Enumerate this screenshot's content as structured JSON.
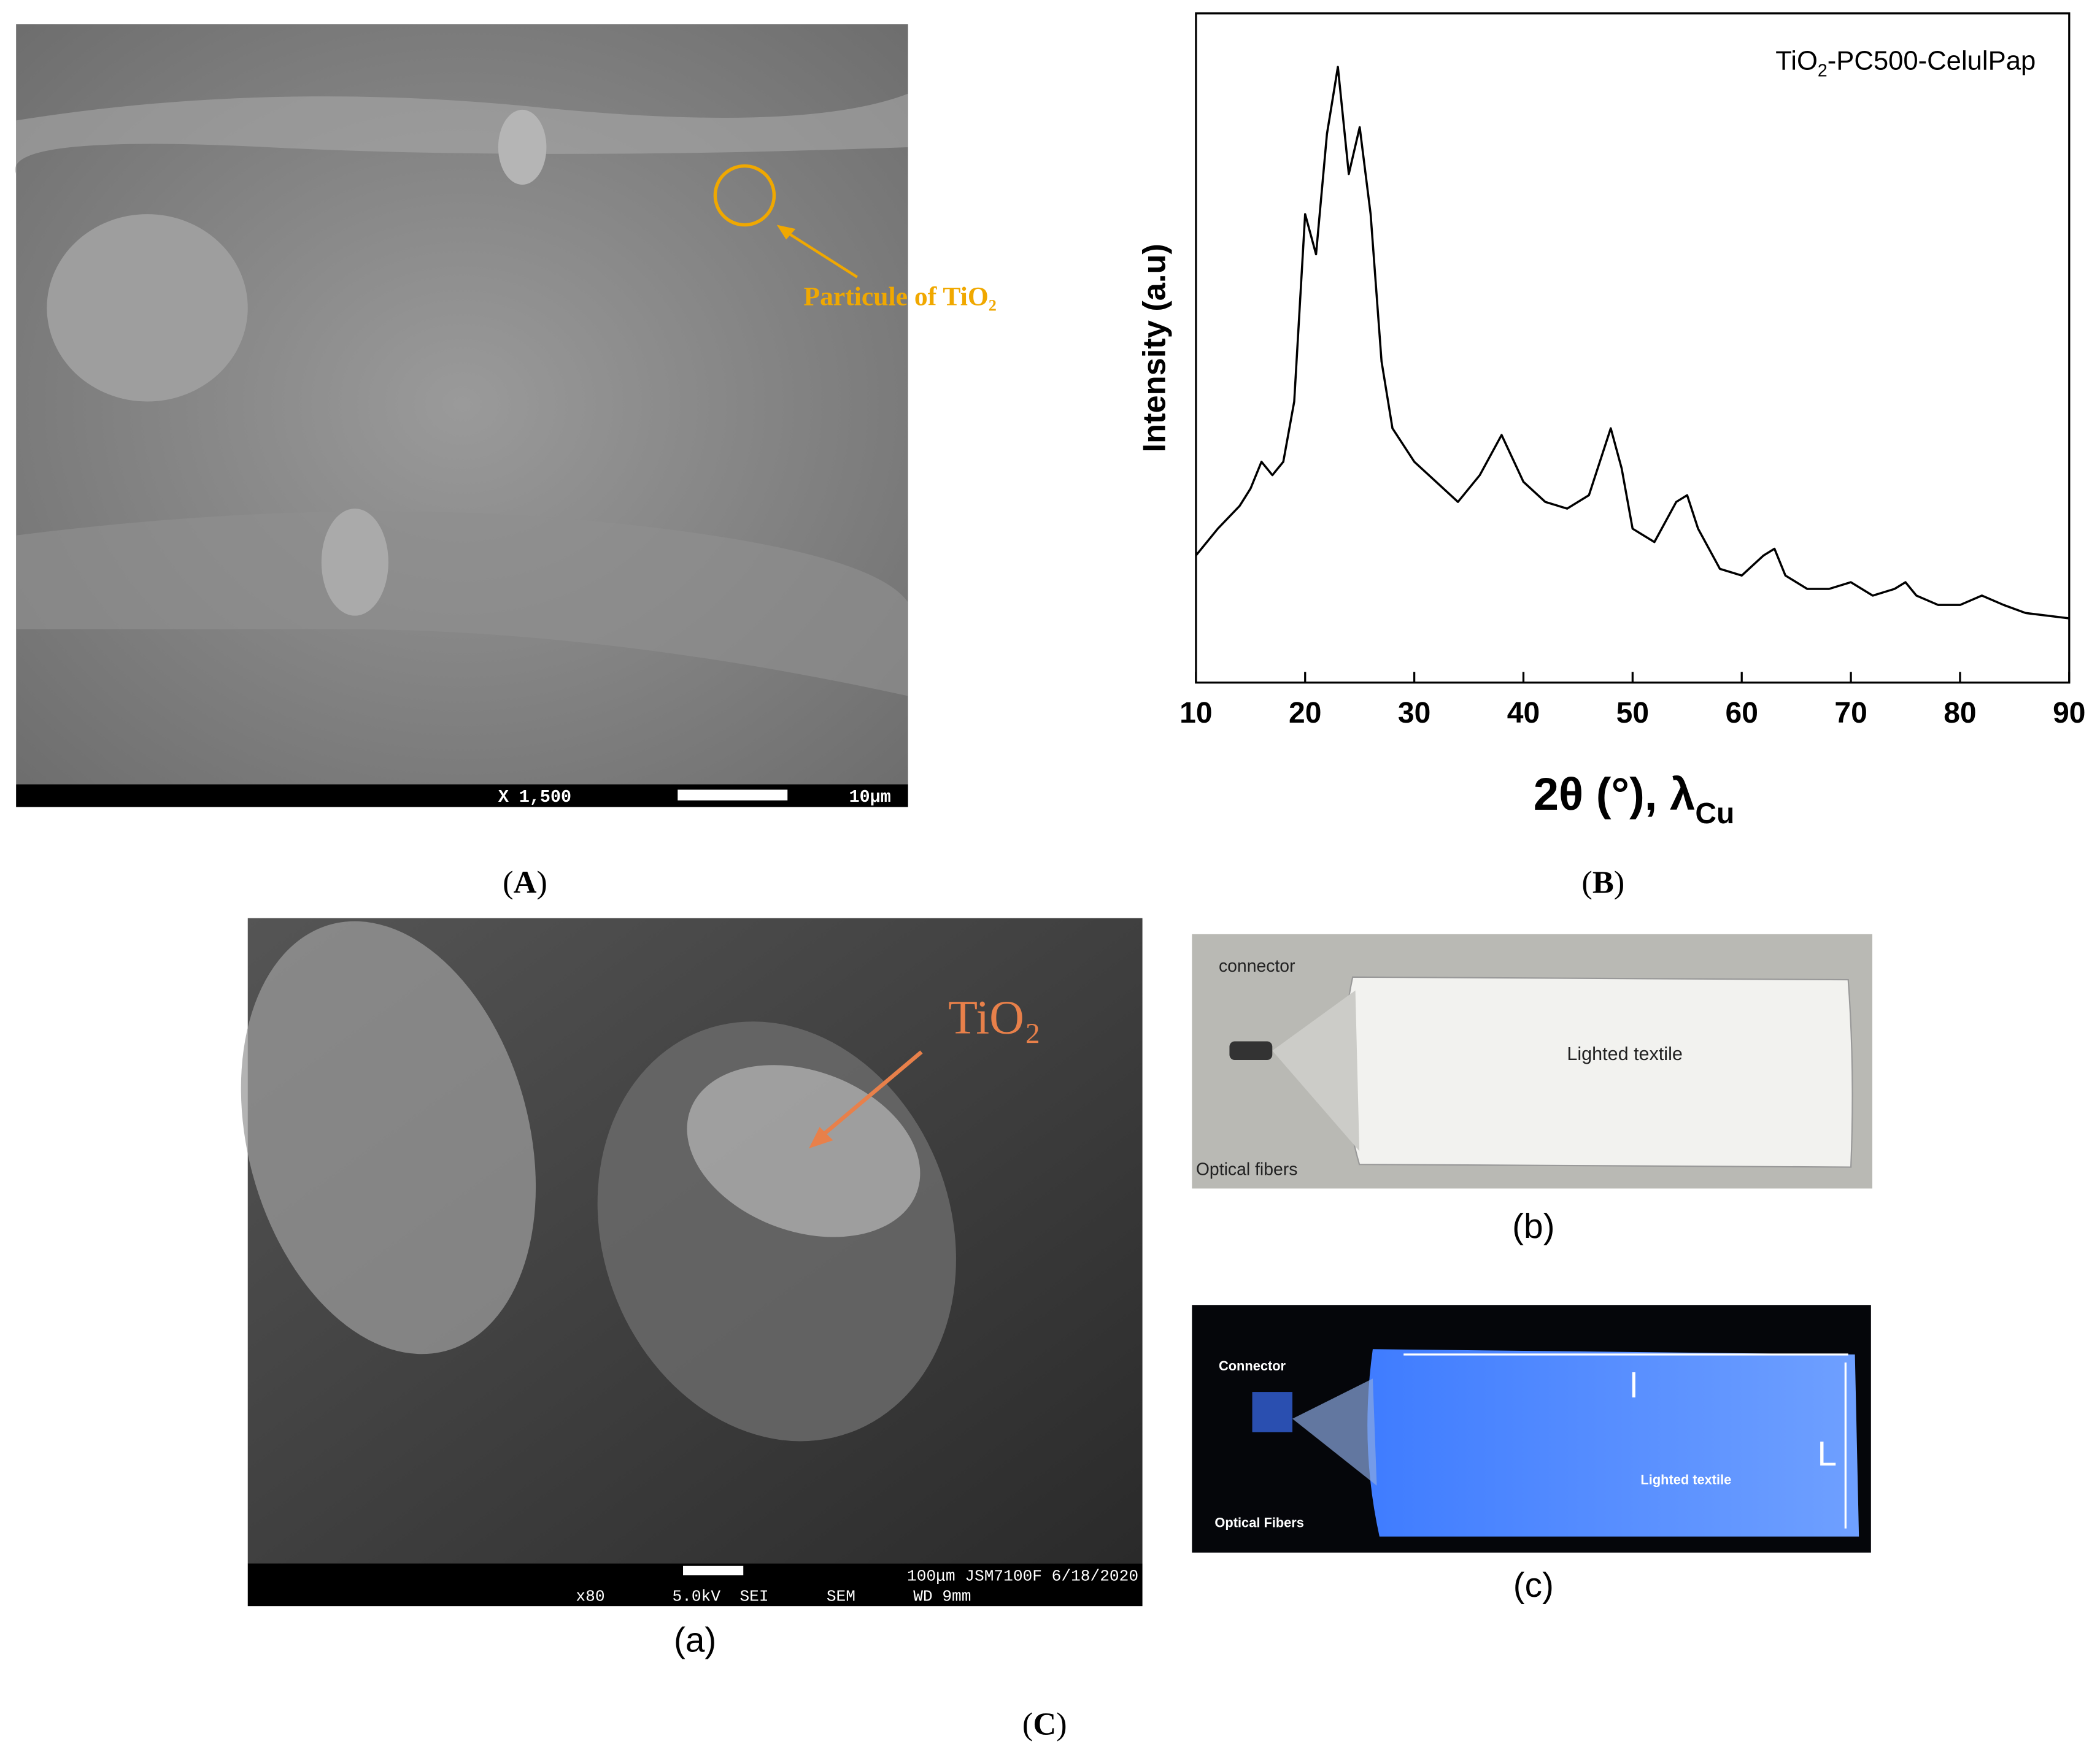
{
  "panel_a": {
    "magnification": "X 1,500",
    "scale": "10μm",
    "annotation": "Particule of TiO₂",
    "label": [
      "(",
      "A",
      ")"
    ]
  },
  "chart_data": {
    "type": "line",
    "title": [
      "TiO",
      "2",
      "-PC500-CelulPap"
    ],
    "y_label": "Intensity (a.u)",
    "x_label": [
      "2θ (°), λ",
      "Cu"
    ],
    "x": [
      10,
      12,
      14,
      15,
      16,
      17,
      18,
      19,
      20,
      21,
      22,
      23,
      24,
      25,
      26,
      27,
      28,
      30,
      32,
      34,
      36,
      38,
      40,
      42,
      44,
      46,
      48,
      49,
      50,
      52,
      54,
      55,
      56,
      58,
      60,
      62,
      63,
      64,
      66,
      68,
      70,
      72,
      74,
      75,
      76,
      78,
      80,
      82,
      84,
      86,
      88,
      90
    ],
    "values": [
      19,
      23,
      26.4,
      29,
      33,
      31,
      33,
      42,
      70,
      64,
      82,
      92,
      76,
      83,
      70,
      48,
      38,
      33,
      30,
      27,
      31,
      37,
      30,
      27,
      26,
      28,
      38,
      32,
      23,
      21,
      27,
      28,
      23,
      17,
      16,
      19,
      20,
      16,
      14,
      14,
      15,
      13,
      14,
      15,
      13,
      11.6,
      11.6,
      13,
      11.6,
      10.4,
      10,
      9.6
    ],
    "color": "#000000",
    "xlim": [
      10,
      90
    ],
    "xticks": [
      10,
      20,
      30,
      40,
      50,
      60,
      70,
      80,
      90
    ],
    "ylim": [
      0,
      100
    ],
    "label": [
      "(",
      "B",
      ")"
    ]
  },
  "panel_c": {
    "annotation": "TiO₂",
    "sem_line1": "100μm JSM7100F 6/18/2020",
    "sem_line2": "x80       5.0kV  SEI      SEM      WD 9mm",
    "sub_a": "(a)",
    "sub_b": "(b)",
    "sub_c": "(c)",
    "photo_b": {
      "connector": "connector",
      "textile": "Lighted textile",
      "fibers": "Optical fibers"
    },
    "photo_c": {
      "connector": "Connector",
      "textile": "Lighted textile",
      "fibers": "Optical Fibers",
      "length": "l",
      "width": "L"
    },
    "label": [
      "(",
      "C",
      ")"
    ]
  }
}
